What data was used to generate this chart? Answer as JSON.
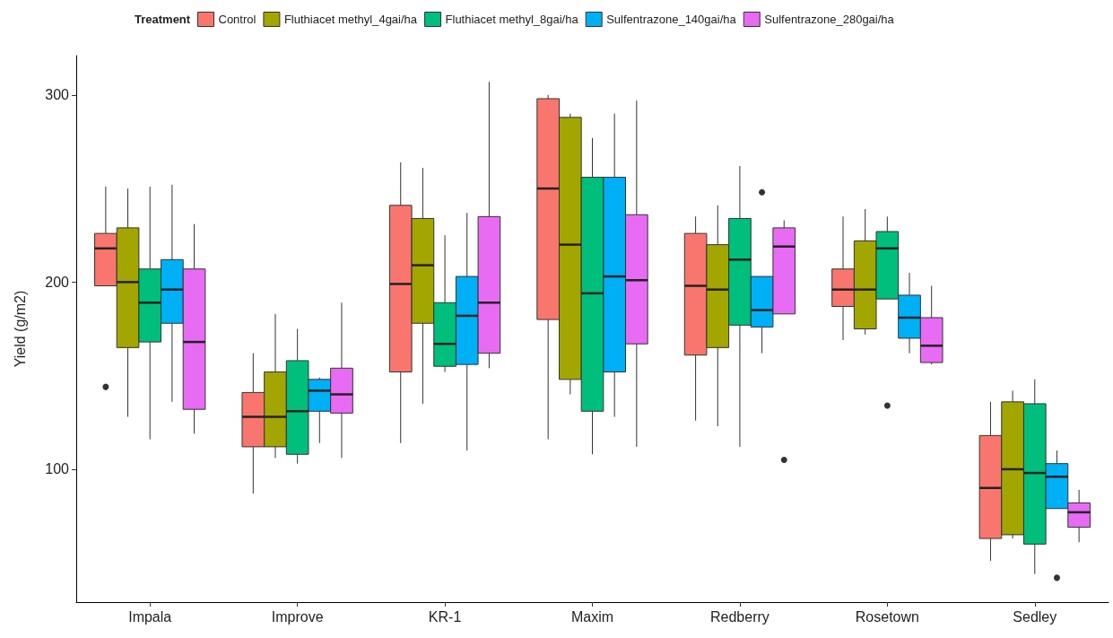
{
  "chart_data": {
    "type": "box",
    "ylabel": "Yield (g/m2)",
    "legend_title": "Treatment",
    "legend": "top",
    "grid": false,
    "categories": [
      "Impala",
      "Improve",
      "KR-1",
      "Maxim",
      "Redberry",
      "Rosetown",
      "Sedley"
    ],
    "ylim": [
      29,
      321
    ],
    "yticks": [
      100,
      200,
      300
    ],
    "series": [
      {
        "name": "Control",
        "color": "#f8766d",
        "boxes": [
          {
            "low": 198,
            "q1": 198,
            "median": 218,
            "q3": 226,
            "high": 251,
            "outliers": [
              144
            ]
          },
          {
            "low": 87,
            "q1": 112,
            "median": 128,
            "q3": 141,
            "high": 162
          },
          {
            "low": 114,
            "q1": 152,
            "median": 199,
            "q3": 241,
            "high": 264
          },
          {
            "low": 116,
            "q1": 180,
            "median": 250,
            "q3": 298,
            "high": 300
          },
          {
            "low": 126,
            "q1": 161,
            "median": 198,
            "q3": 226,
            "high": 235
          },
          {
            "low": 169,
            "q1": 187,
            "median": 196,
            "q3": 207,
            "high": 235
          },
          {
            "low": 51,
            "q1": 63,
            "median": 90,
            "q3": 118,
            "high": 136
          }
        ]
      },
      {
        "name": "Fluthiacet methyl_4gai/ha",
        "color": "#a3a500",
        "boxes": [
          {
            "low": 128,
            "q1": 165,
            "median": 200,
            "q3": 229,
            "high": 250
          },
          {
            "low": 106,
            "q1": 112,
            "median": 128,
            "q3": 152,
            "high": 183
          },
          {
            "low": 135,
            "q1": 178,
            "median": 209,
            "q3": 234,
            "high": 261
          },
          {
            "low": 140,
            "q1": 148,
            "median": 220,
            "q3": 288,
            "high": 290
          },
          {
            "low": 123,
            "q1": 165,
            "median": 196,
            "q3": 220,
            "high": 241
          },
          {
            "low": 172,
            "q1": 175,
            "median": 196,
            "q3": 222,
            "high": 239
          },
          {
            "low": 63,
            "q1": 65,
            "median": 100,
            "q3": 136,
            "high": 142
          }
        ]
      },
      {
        "name": "Fluthiacet methyl_8gai/ha",
        "color": "#00bf7d",
        "boxes": [
          {
            "low": 116,
            "q1": 168,
            "median": 189,
            "q3": 207,
            "high": 251
          },
          {
            "low": 103,
            "q1": 108,
            "median": 131,
            "q3": 158,
            "high": 175
          },
          {
            "low": 152,
            "q1": 155,
            "median": 167,
            "q3": 189,
            "high": 225
          },
          {
            "low": 108,
            "q1": 131,
            "median": 194,
            "q3": 256,
            "high": 277
          },
          {
            "low": 112,
            "q1": 177,
            "median": 212,
            "q3": 234,
            "high": 262
          },
          {
            "low": 191,
            "q1": 191,
            "median": 218,
            "q3": 227,
            "high": 235,
            "outliers": [
              134
            ]
          },
          {
            "low": 44,
            "q1": 60,
            "median": 98,
            "q3": 135,
            "high": 148
          }
        ]
      },
      {
        "name": "Sulfentrazone_140gai/ha",
        "color": "#00b0f6",
        "boxes": [
          {
            "low": 136,
            "q1": 178,
            "median": 196,
            "q3": 212,
            "high": 252
          },
          {
            "low": 114,
            "q1": 131,
            "median": 142,
            "q3": 148,
            "high": 149
          },
          {
            "low": 110,
            "q1": 156,
            "median": 182,
            "q3": 203,
            "high": 237
          },
          {
            "low": 128,
            "q1": 152,
            "median": 203,
            "q3": 256,
            "high": 290
          },
          {
            "low": 162,
            "q1": 176,
            "median": 185,
            "q3": 203,
            "high": 203,
            "outliers": [
              248
            ]
          },
          {
            "low": 162,
            "q1": 170,
            "median": 181,
            "q3": 193,
            "high": 205
          },
          {
            "low": 79,
            "q1": 79,
            "median": 96,
            "q3": 103,
            "high": 110,
            "outliers": [
              42
            ]
          }
        ]
      },
      {
        "name": "Sulfentrazone_280gai/ha",
        "color": "#e76bf3",
        "boxes": [
          {
            "low": 119,
            "q1": 132,
            "median": 168,
            "q3": 207,
            "high": 231
          },
          {
            "low": 106,
            "q1": 130,
            "median": 140,
            "q3": 154,
            "high": 189
          },
          {
            "low": 154,
            "q1": 162,
            "median": 189,
            "q3": 235,
            "high": 307
          },
          {
            "low": 112,
            "q1": 167,
            "median": 201,
            "q3": 236,
            "high": 297
          },
          {
            "low": 183,
            "q1": 183,
            "median": 219,
            "q3": 229,
            "high": 233,
            "outliers": [
              105
            ]
          },
          {
            "low": 156,
            "q1": 157,
            "median": 166,
            "q3": 181,
            "high": 198
          },
          {
            "low": 61,
            "q1": 69,
            "median": 77,
            "q3": 82,
            "high": 89
          }
        ]
      }
    ]
  }
}
